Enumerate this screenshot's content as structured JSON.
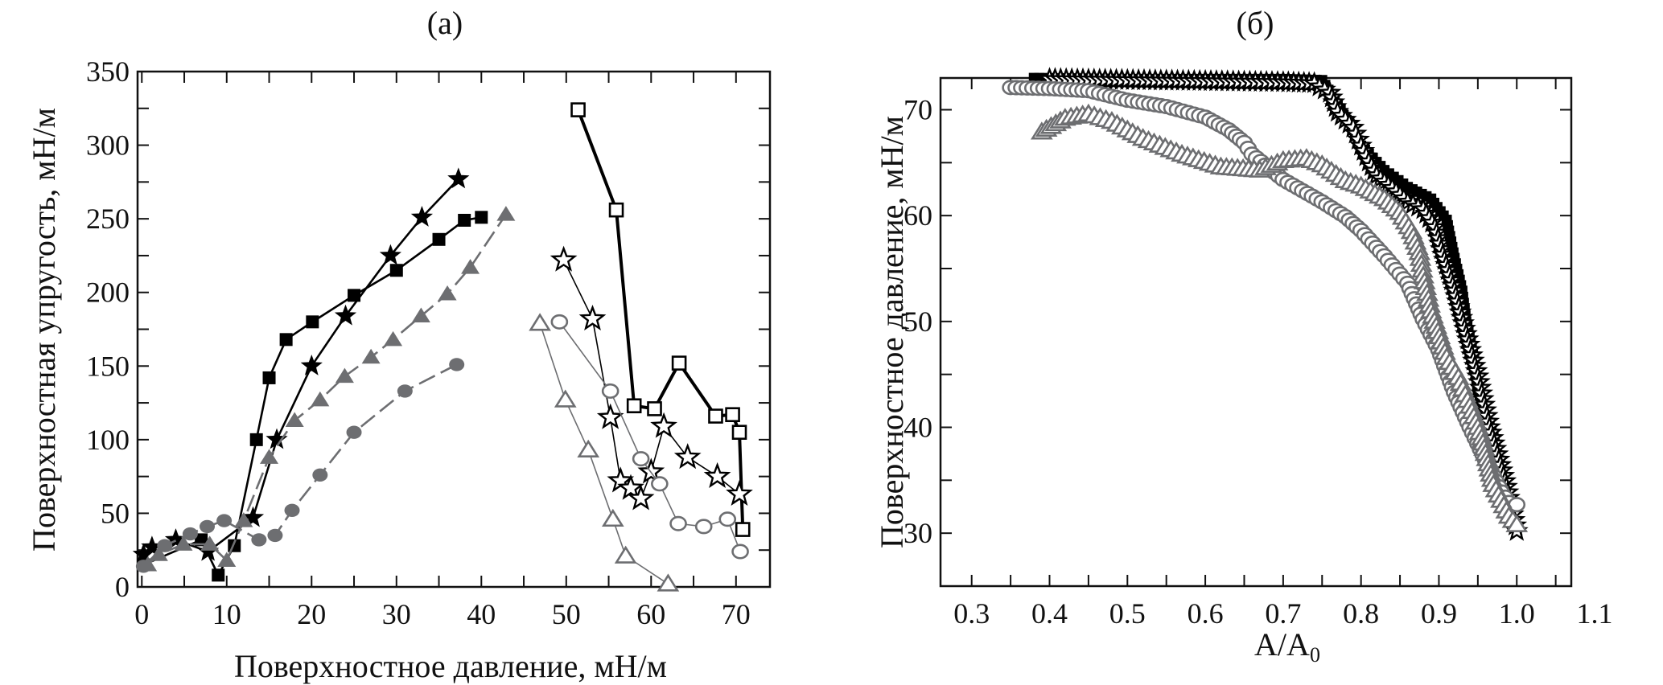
{
  "colors": {
    "black": "#000000",
    "gray": "#6d6e71"
  },
  "chart_data": [
    {
      "panel_label": "(а)",
      "type": "scatter",
      "xlabel": "Поверхностное давление, мН/м",
      "ylabel": "Поверхностная упругость, мН/м",
      "xlim": [
        -0.5,
        74
      ],
      "ylim": [
        0,
        350
      ],
      "xticks": [
        0,
        10,
        20,
        30,
        40,
        50,
        60,
        70
      ],
      "yticks": [
        0,
        50,
        100,
        150,
        200,
        250,
        300,
        350
      ],
      "grid": false,
      "series": [
        {
          "marker": "square",
          "fill": "filled",
          "color": "black",
          "line": "solid",
          "points": [
            [
              0.2,
              15
            ],
            [
              7,
              32
            ],
            [
              9,
              8
            ],
            [
              10.9,
              28
            ],
            [
              13.5,
              100
            ],
            [
              15,
              142
            ],
            [
              17,
              168
            ],
            [
              20.1,
              180
            ],
            [
              25,
              198
            ],
            [
              30,
              215
            ],
            [
              35,
              236
            ],
            [
              38,
              249
            ],
            [
              40,
              251
            ]
          ]
        },
        {
          "marker": "star",
          "fill": "filled",
          "color": "black",
          "line": "solid",
          "points": [
            [
              0.2,
              22
            ],
            [
              1.2,
              27
            ],
            [
              4,
              32
            ],
            [
              7.8,
              24
            ],
            [
              13.1,
              47
            ],
            [
              15.9,
              100
            ],
            [
              20,
              150
            ],
            [
              24,
              184
            ],
            [
              29.3,
              225
            ],
            [
              33,
              251
            ],
            [
              37.3,
              277
            ]
          ]
        },
        {
          "marker": "triangle",
          "fill": "filled",
          "color": "gray",
          "line": "dashed",
          "points": [
            [
              0.7,
              15
            ],
            [
              2,
              22
            ],
            [
              4.9,
              29
            ],
            [
              8,
              29
            ],
            [
              10,
              18
            ],
            [
              12,
              45
            ],
            [
              15,
              88
            ],
            [
              18,
              113
            ],
            [
              21,
              127
            ],
            [
              23.9,
              143
            ],
            [
              27,
              156
            ],
            [
              29.6,
              168
            ],
            [
              32.9,
              184
            ],
            [
              36,
              199
            ],
            [
              38.7,
              217
            ],
            [
              42.9,
              253
            ]
          ]
        },
        {
          "marker": "circle",
          "fill": "filled",
          "color": "gray",
          "line": "dashed",
          "points": [
            [
              0.2,
              14
            ],
            [
              2.7,
              28
            ],
            [
              5.7,
              36
            ],
            [
              7.7,
              41
            ],
            [
              9.7,
              45
            ],
            [
              13.8,
              32
            ],
            [
              15.7,
              35
            ],
            [
              17.7,
              52
            ],
            [
              21,
              76
            ],
            [
              25,
              105
            ],
            [
              31,
              133
            ],
            [
              37.1,
              151
            ]
          ]
        },
        {
          "marker": "square",
          "fill": "open",
          "color": "black",
          "line": "solid-thick",
          "points": [
            [
              51.4,
              324
            ],
            [
              55.9,
              256
            ],
            [
              58,
              123
            ],
            [
              60.4,
              121
            ],
            [
              63.3,
              152
            ],
            [
              67.6,
              116
            ],
            [
              69.6,
              117
            ],
            [
              70.4,
              105
            ],
            [
              70.8,
              39
            ]
          ]
        },
        {
          "marker": "star",
          "fill": "open",
          "color": "black",
          "line": "solid-thin",
          "points": [
            [
              49.7,
              222
            ],
            [
              53.1,
              182
            ],
            [
              55.2,
              115
            ],
            [
              56.4,
              72
            ],
            [
              57.6,
              67
            ],
            [
              58.8,
              60
            ],
            [
              60,
              78
            ],
            [
              61.5,
              109
            ],
            [
              64.3,
              88
            ],
            [
              67.8,
              75
            ],
            [
              70.4,
              63
            ]
          ]
        },
        {
          "marker": "circle",
          "fill": "open",
          "color": "gray",
          "line": "solid-thin",
          "points": [
            [
              49.2,
              180
            ],
            [
              55.2,
              133
            ],
            [
              58.8,
              87
            ],
            [
              61,
              70
            ],
            [
              63.2,
              43
            ],
            [
              66.2,
              41
            ],
            [
              69,
              46
            ],
            [
              70.5,
              24
            ]
          ]
        },
        {
          "marker": "triangle",
          "fill": "open",
          "color": "gray",
          "line": "solid-thin",
          "points": [
            [
              46.9,
              179
            ],
            [
              49.9,
              127
            ],
            [
              52.6,
              93
            ],
            [
              55.5,
              46
            ],
            [
              57,
              21
            ],
            [
              62,
              2
            ]
          ]
        }
      ]
    },
    {
      "panel_label": "(б)",
      "type": "scatter",
      "xlabel": "A/A",
      "xlabel_sub": "0",
      "ylabel": "Поверхностное давление, мН/м",
      "xlim": [
        0.26,
        1.07
      ],
      "ylim": [
        25,
        73
      ],
      "xticks": [
        0.3,
        0.4,
        0.5,
        0.6,
        0.7,
        0.8,
        0.9,
        1.0,
        1.1
      ],
      "xtick_labels": [
        "0.3",
        "0.4",
        "0.5",
        "0.6",
        "0.7",
        "0.8",
        "0.9",
        "1.0",
        "1.1"
      ],
      "yticks": [
        30,
        40,
        50,
        60,
        70
      ],
      "grid": false,
      "series": [
        {
          "marker": "square",
          "fill": "filled",
          "color": "black",
          "points": [
            [
              0.38,
              73
            ],
            [
              0.5,
              72.9
            ],
            [
              0.6,
              72.9
            ],
            [
              0.7,
              72.9
            ],
            [
              0.75,
              72.8
            ],
            [
              0.77,
              70.5
            ],
            [
              0.8,
              66.6
            ],
            [
              0.83,
              64.3
            ],
            [
              0.86,
              62.7
            ],
            [
              0.89,
              61.6
            ],
            [
              0.91,
              59.6
            ],
            [
              0.92,
              56
            ],
            [
              0.93,
              52.9
            ],
            [
              0.935,
              50
            ],
            [
              0.945,
              46.6
            ],
            [
              0.95,
              43.3
            ],
            [
              0.97,
              39.3
            ],
            [
              0.98,
              35.9
            ],
            [
              0.99,
              32.5
            ],
            [
              1.0,
              30.5
            ]
          ]
        },
        {
          "marker": "star",
          "fill": "open",
          "color": "black",
          "points": [
            [
              0.4,
              72.9
            ],
            [
              0.5,
              72.8
            ],
            [
              0.6,
              72.7
            ],
            [
              0.7,
              72.6
            ],
            [
              0.74,
              72.5
            ],
            [
              0.76,
              71.6
            ],
            [
              0.77,
              69.8
            ],
            [
              0.79,
              68.3
            ],
            [
              0.8,
              66.6
            ],
            [
              0.81,
              65.1
            ],
            [
              0.82,
              63.8
            ],
            [
              0.84,
              62.6
            ],
            [
              0.86,
              61.3
            ],
            [
              0.88,
              60.6
            ],
            [
              0.895,
              58.9
            ],
            [
              0.905,
              56.3
            ],
            [
              0.92,
              52.9
            ],
            [
              0.935,
              48.8
            ],
            [
              0.95,
              44.8
            ],
            [
              0.965,
              40
            ],
            [
              0.985,
              34.9
            ],
            [
              1.0,
              30.2
            ]
          ]
        },
        {
          "marker": "circle",
          "fill": "open",
          "color": "gray",
          "points": [
            [
              0.35,
              72.1
            ],
            [
              0.4,
              72
            ],
            [
              0.45,
              71.8
            ],
            [
              0.5,
              70.9
            ],
            [
              0.55,
              70.3
            ],
            [
              0.6,
              69.3
            ],
            [
              0.63,
              68.1
            ],
            [
              0.65,
              66.9
            ],
            [
              0.66,
              65.8
            ],
            [
              0.7,
              63.4
            ],
            [
              0.75,
              61.3
            ],
            [
              0.78,
              59.9
            ],
            [
              0.8,
              58.6
            ],
            [
              0.83,
              56.2
            ],
            [
              0.86,
              53.6
            ],
            [
              0.88,
              50.2
            ],
            [
              0.9,
              47.3
            ],
            [
              0.92,
              43.3
            ],
            [
              0.94,
              40
            ],
            [
              0.96,
              36.9
            ],
            [
              0.98,
              33.9
            ],
            [
              0.99,
              32.9
            ],
            [
              1.0,
              32.7
            ]
          ]
        },
        {
          "marker": "triangle",
          "fill": "open",
          "color": "gray",
          "points": [
            [
              0.39,
              67.9
            ],
            [
              0.42,
              69.2
            ],
            [
              0.45,
              69.6
            ],
            [
              0.48,
              68.9
            ],
            [
              0.52,
              67.3
            ],
            [
              0.57,
              65.8
            ],
            [
              0.62,
              64.6
            ],
            [
              0.67,
              64.3
            ],
            [
              0.7,
              65.2
            ],
            [
              0.73,
              65.4
            ],
            [
              0.75,
              64.8
            ],
            [
              0.78,
              63.3
            ],
            [
              0.8,
              62.8
            ],
            [
              0.83,
              61.6
            ],
            [
              0.85,
              60.3
            ],
            [
              0.865,
              58.5
            ],
            [
              0.875,
              56.5
            ],
            [
              0.88,
              54.3
            ],
            [
              0.89,
              51
            ],
            [
              0.91,
              46.6
            ],
            [
              0.925,
              44.7
            ],
            [
              0.94,
              42
            ],
            [
              0.955,
              39
            ],
            [
              0.97,
              34.6
            ],
            [
              0.99,
              31.6
            ],
            [
              1.0,
              30.8
            ]
          ]
        }
      ]
    }
  ]
}
